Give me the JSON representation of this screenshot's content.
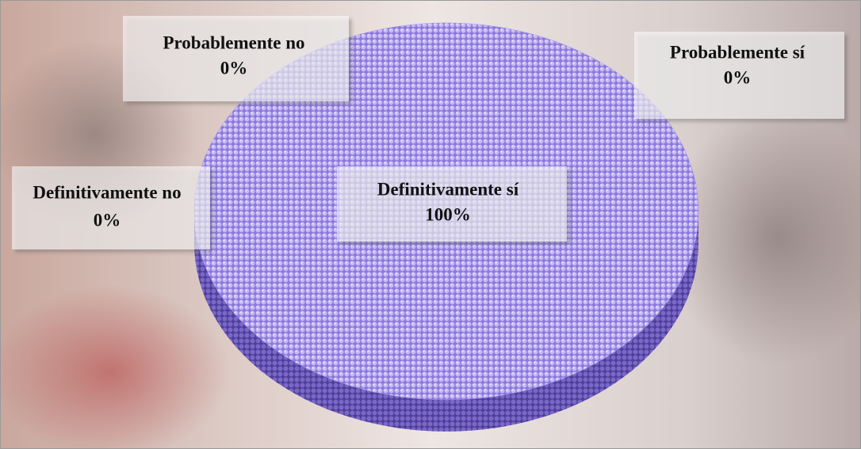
{
  "chart_data": {
    "type": "pie",
    "categories": [
      "Definitivamente sí",
      "Probablemente sí",
      "Probablemente no",
      "Definitivamente no"
    ],
    "values": [
      100,
      0,
      0,
      0
    ],
    "value_labels": [
      "100%",
      "0%",
      "0%",
      "0%"
    ],
    "color": "#9c8ae8"
  }
}
